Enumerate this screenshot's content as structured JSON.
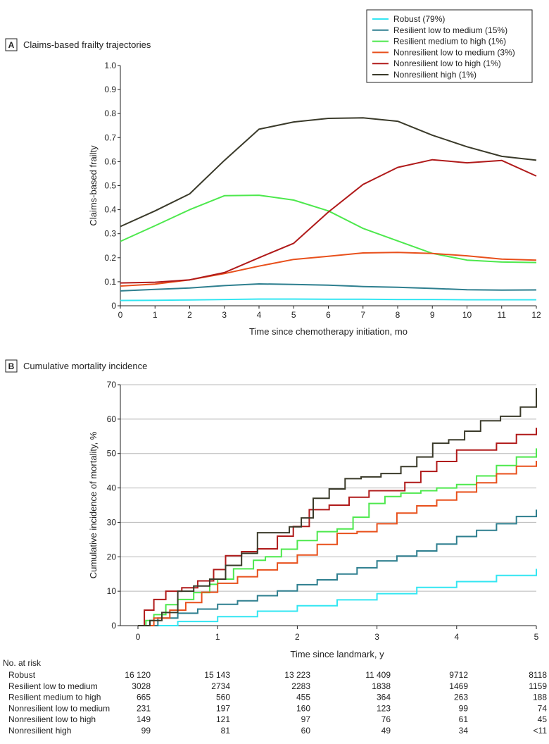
{
  "chart_data": [
    {
      "panel": "A",
      "title": "Claims-based frailty trajectories",
      "type": "line",
      "xlabel": "Time since chemotherapy initiation, mo",
      "ylabel": "Claims-based frailty",
      "xlim": [
        0,
        12
      ],
      "ylim": [
        0,
        1.0
      ],
      "x_ticks": [
        "0",
        "1",
        "2",
        "3",
        "4",
        "5",
        "6",
        "7",
        "8",
        "9",
        "10",
        "11",
        "12"
      ],
      "y_ticks": [
        "0",
        "0.1",
        "0.2",
        "0.3",
        "0.4",
        "0.5",
        "0.6",
        "0.7",
        "0.8",
        "0.9",
        "1.0"
      ],
      "legend_position": "top-right",
      "x": [
        0,
        1,
        2,
        3,
        4,
        5,
        6,
        7,
        8,
        9,
        10,
        11,
        12
      ],
      "series": [
        {
          "name": "Robust (79%)",
          "color": "#33e6f2",
          "values": [
            0.022,
            0.023,
            0.024,
            0.026,
            0.028,
            0.028,
            0.027,
            0.027,
            0.026,
            0.026,
            0.025,
            0.025,
            0.025
          ]
        },
        {
          "name": "Resilient low to medium (15%)",
          "color": "#2e7f8f",
          "values": [
            0.062,
            0.068,
            0.074,
            0.084,
            0.091,
            0.089,
            0.086,
            0.08,
            0.077,
            0.072,
            0.067,
            0.065,
            0.066
          ]
        },
        {
          "name": "Resilient medium to high (1%)",
          "color": "#4de84d",
          "values": [
            0.268,
            0.333,
            0.4,
            0.458,
            0.46,
            0.44,
            0.395,
            0.322,
            0.27,
            0.218,
            0.19,
            0.182,
            0.18
          ]
        },
        {
          "name": "Nonresilient low to medium (3%)",
          "color": "#e8501c",
          "values": [
            0.082,
            0.09,
            0.108,
            0.134,
            0.165,
            0.193,
            0.206,
            0.22,
            0.222,
            0.218,
            0.208,
            0.194,
            0.19
          ]
        },
        {
          "name": "Nonresilient low to high (1%)",
          "color": "#b01a1a",
          "values": [
            0.095,
            0.098,
            0.108,
            0.138,
            0.2,
            0.26,
            0.39,
            0.505,
            0.576,
            0.608,
            0.595,
            0.605,
            0.54
          ]
        },
        {
          "name": "Nonresilient high (1%)",
          "color": "#3a3a2a",
          "values": [
            0.33,
            0.395,
            0.466,
            0.605,
            0.735,
            0.765,
            0.78,
            0.782,
            0.768,
            0.71,
            0.662,
            0.622,
            0.606
          ]
        }
      ]
    },
    {
      "panel": "B",
      "title": "Cumulative mortality incidence",
      "type": "line",
      "xlabel": "Time since landmark, y",
      "ylabel": "Cumulative incidence of mortality, %",
      "xlim": [
        0,
        5
      ],
      "ylim": [
        0,
        70
      ],
      "x_ticks": [
        "0",
        "1",
        "2",
        "3",
        "4",
        "5"
      ],
      "y_ticks": [
        "0",
        "10",
        "20",
        "30",
        "40",
        "50",
        "60",
        "70"
      ],
      "grid": true,
      "series": [
        {
          "name": "Robust",
          "color": "#33e6f2",
          "x": [
            0,
            0.5,
            1,
            1.5,
            2,
            2.5,
            3,
            3.5,
            4,
            4.5,
            5
          ],
          "values": [
            0,
            1.2,
            2.6,
            4.2,
            5.8,
            7.5,
            9.3,
            11.1,
            12.8,
            14.6,
            16.5
          ]
        },
        {
          "name": "Resilient low to medium",
          "color": "#2e7f8f",
          "x": [
            0,
            0.25,
            0.5,
            0.75,
            1,
            1.25,
            1.5,
            1.75,
            2,
            2.25,
            2.5,
            2.75,
            3,
            3.25,
            3.5,
            3.75,
            4,
            4.25,
            4.5,
            4.75,
            5
          ],
          "values": [
            0,
            2.2,
            3.6,
            4.8,
            6.2,
            7.2,
            8.7,
            10.1,
            11.9,
            13.3,
            15.0,
            16.8,
            18.8,
            20.2,
            21.7,
            23.7,
            25.9,
            27.7,
            29.6,
            31.7,
            33.7
          ]
        },
        {
          "name": "Resilient medium to high",
          "color": "#4de84d",
          "x": [
            0,
            0.1,
            0.2,
            0.35,
            0.5,
            0.7,
            0.9,
            1.0,
            1.2,
            1.45,
            1.6,
            1.8,
            2.0,
            2.25,
            2.5,
            2.7,
            2.9,
            3.1,
            3.3,
            3.55,
            3.75,
            4.0,
            4.25,
            4.5,
            4.75,
            5.0
          ],
          "values": [
            0,
            1.5,
            3.2,
            6.1,
            7.6,
            9.6,
            12,
            13.5,
            16.5,
            19,
            20,
            22.2,
            24.7,
            27.3,
            28.1,
            31.5,
            35.5,
            37.5,
            38.5,
            39.2,
            40,
            41,
            43.5,
            46.5,
            49,
            51.5
          ]
        },
        {
          "name": "Nonresilient low to medium",
          "color": "#e8501c",
          "x": [
            0,
            0.2,
            0.4,
            0.6,
            0.8,
            1.0,
            1.25,
            1.5,
            1.75,
            2.0,
            2.25,
            2.5,
            2.75,
            3.0,
            3.25,
            3.5,
            3.75,
            4.0,
            4.25,
            4.5,
            4.75,
            5.0
          ],
          "values": [
            0,
            2.2,
            4.5,
            6.7,
            9.7,
            12.3,
            14.2,
            16.2,
            18.2,
            20.5,
            23.6,
            26.8,
            27.3,
            29.6,
            32.7,
            34.8,
            36.5,
            38.8,
            41.5,
            44.1,
            46.3,
            47.9
          ]
        },
        {
          "name": "Nonresilient low to high",
          "color": "#b01a1a",
          "x": [
            0,
            0.08,
            0.2,
            0.35,
            0.55,
            0.75,
            0.95,
            1.1,
            1.3,
            1.5,
            1.75,
            1.95,
            2.15,
            2.4,
            2.65,
            2.9,
            3.1,
            3.35,
            3.55,
            3.75,
            4.0,
            4.25,
            4.5,
            4.75,
            5.0
          ],
          "values": [
            0,
            4.5,
            7.6,
            10,
            11,
            13,
            16.3,
            20.3,
            21.5,
            22.3,
            26,
            28.8,
            33.7,
            35,
            37.3,
            39.2,
            39.2,
            41.6,
            44.8,
            47.7,
            51,
            51,
            53,
            55.5,
            57.5
          ]
        },
        {
          "name": "Nonresilient high",
          "color": "#3a3a2a",
          "x": [
            0,
            0.15,
            0.3,
            0.5,
            0.7,
            0.9,
            1.1,
            1.3,
            1.5,
            1.7,
            1.9,
            2.05,
            2.2,
            2.4,
            2.6,
            2.8,
            3.05,
            3.3,
            3.5,
            3.7,
            3.9,
            4.1,
            4.3,
            4.55,
            4.8,
            5.0
          ],
          "values": [
            0,
            1.5,
            3.8,
            10,
            11.5,
            13.5,
            17.5,
            21,
            27,
            27,
            28.7,
            31.3,
            37,
            39.7,
            42.7,
            43.2,
            44.2,
            46.2,
            49,
            53,
            54,
            56.5,
            59.5,
            60.8,
            63.5,
            69
          ]
        }
      ],
      "risk_table": {
        "title": "No. at risk",
        "rows": [
          {
            "label": "Robust",
            "values": [
              "16 120",
              "15 143",
              "13 223",
              "11 409",
              "9712",
              "8118"
            ]
          },
          {
            "label": "Resilient low to medium",
            "values": [
              "3028",
              "2734",
              "2283",
              "1838",
              "1469",
              "1159"
            ]
          },
          {
            "label": "Resilient medium to high",
            "values": [
              "665",
              "560",
              "455",
              "364",
              "263",
              "188"
            ]
          },
          {
            "label": "Nonresilient low to medium",
            "values": [
              "231",
              "197",
              "160",
              "123",
              "99",
              "74"
            ]
          },
          {
            "label": "Nonresilient low to high",
            "values": [
              "149",
              "121",
              "97",
              "76",
              "61",
              "45"
            ]
          },
          {
            "label": "Nonresilient high",
            "values": [
              "99",
              "81",
              "60",
              "49",
              "34",
              "<11"
            ]
          }
        ]
      }
    }
  ]
}
